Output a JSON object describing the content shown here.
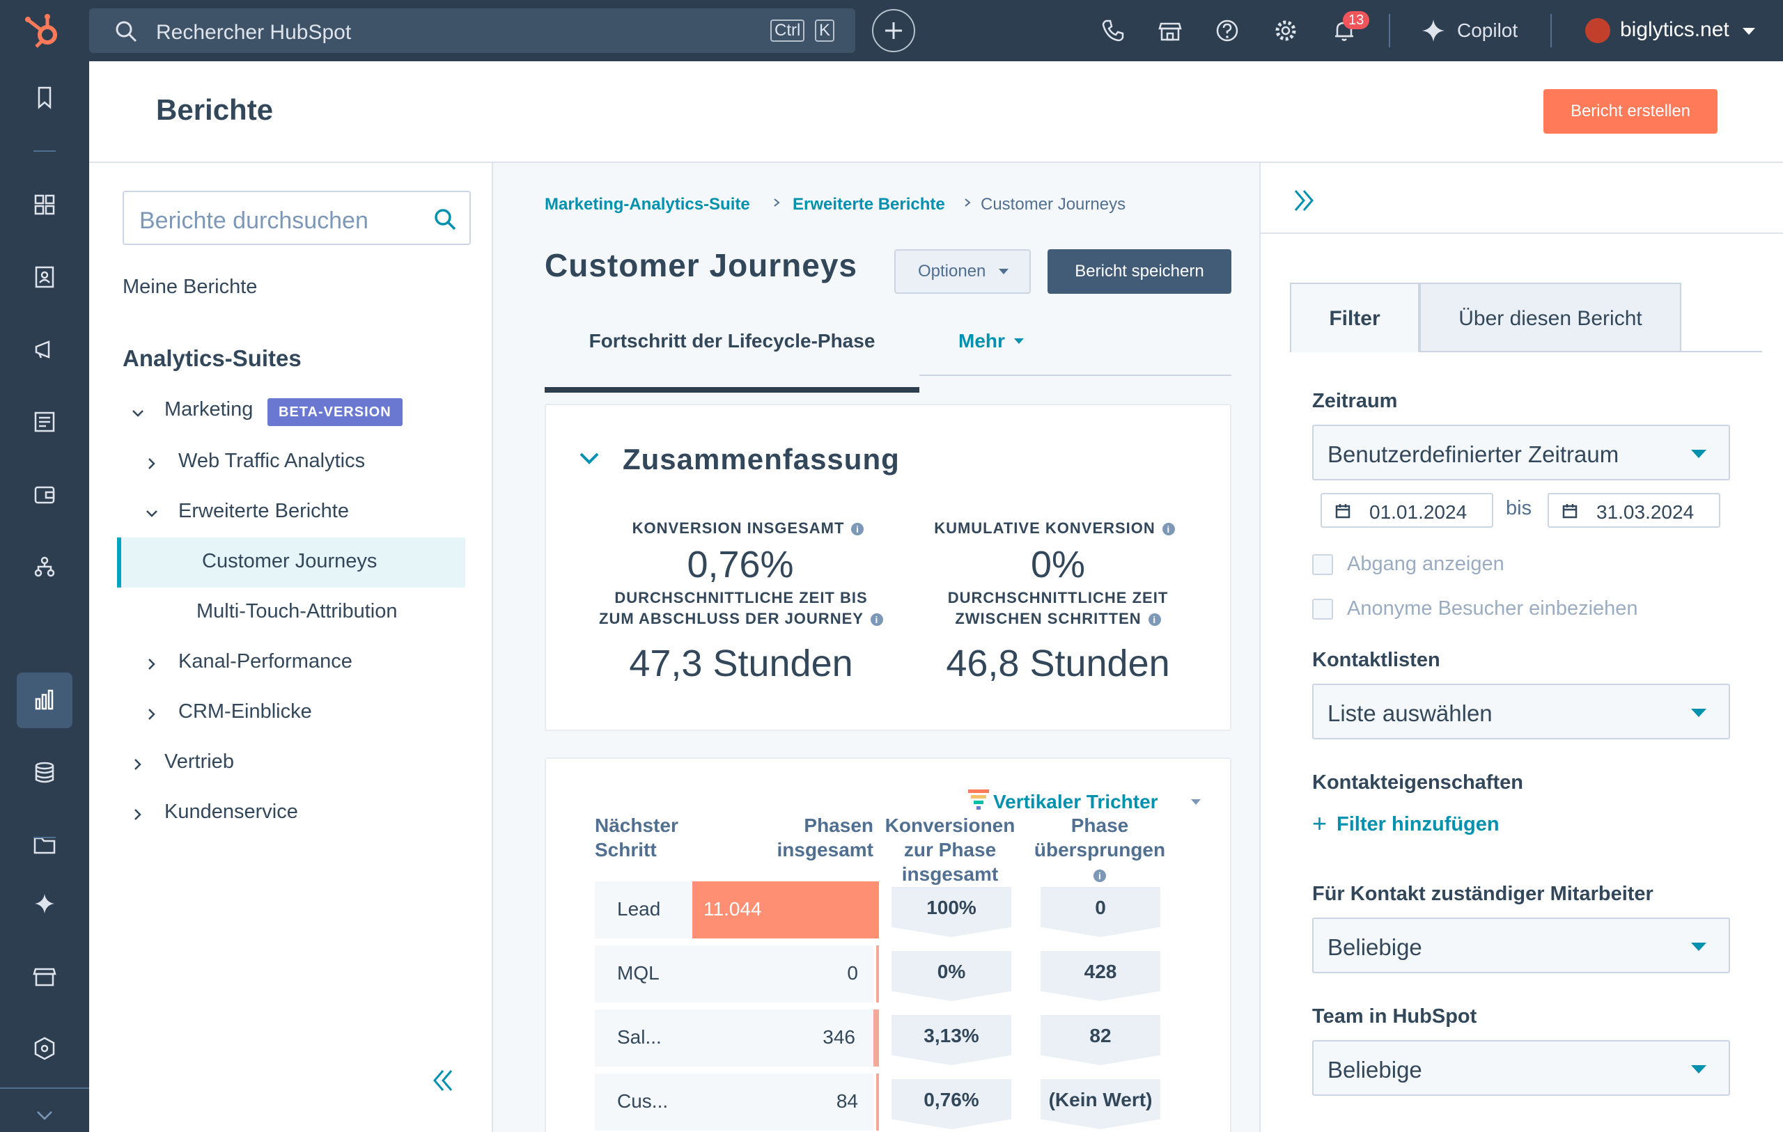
{
  "topbar": {
    "search_placeholder": "Rechercher HubSpot",
    "kbd_ctrl": "Ctrl",
    "kbd_k": "K",
    "notification_count": "13",
    "copilot_label": "Copilot",
    "account_name": "biglytics.net"
  },
  "header": {
    "title": "Berichte",
    "create_button": "Bericht erstellen"
  },
  "left_panel": {
    "search_placeholder": "Berichte durchsuchen",
    "my_reports": "Meine Berichte",
    "section_title": "Analytics-Suites",
    "tree": {
      "marketing": "Marketing",
      "beta_badge": "BETA-VERSION",
      "web_traffic": "Web Traffic Analytics",
      "advanced": "Erweiterte Berichte",
      "customer_journeys": "Customer Journeys",
      "multi_touch": "Multi-Touch-Attribution",
      "channel": "Kanal-Performance",
      "crm": "CRM-Einblicke",
      "sales": "Vertrieb",
      "service": "Kundenservice"
    }
  },
  "breadcrumb": {
    "level1": "Marketing-Analytics-Suite",
    "level2": "Erweiterte Berichte",
    "current": "Customer Journeys"
  },
  "report": {
    "title": "Customer Journeys",
    "options_button": "Optionen",
    "save_button": "Bericht speichern",
    "tab_active": "Fortschritt der Lifecycle-Phase",
    "tab_more": "Mehr"
  },
  "summary": {
    "title": "Zusammenfassung",
    "kpis": {
      "total_conversion_label": "KONVERSION INSGESAMT",
      "total_conversion_value": "0,76%",
      "cumulative_conversion_label": "KUMULATIVE KONVERSION",
      "cumulative_conversion_value": "0%",
      "avg_time_total_label_1": "DURCHSCHNITTLICHE ZEIT BIS",
      "avg_time_total_label_2": "ZUM ABSCHLUSS DER JOURNEY",
      "avg_time_total_value": "47,3 Stunden",
      "avg_time_steps_label_1": "DURCHSCHNITTLICHE ZEIT",
      "avg_time_steps_label_2": "ZWISCHEN SCHRITTEN",
      "avg_time_steps_value": "46,8 Stunden"
    }
  },
  "funnel": {
    "visualization": "Vertikaler Trichter",
    "columns": {
      "next_step_1": "Nächster",
      "next_step_2": "Schritt",
      "phases_1": "Phasen",
      "phases_2": "insgesamt",
      "conv_1": "Konversionen",
      "conv_2": "zur Phase",
      "conv_3": "insgesamt",
      "skipped_1": "Phase",
      "skipped_2": "übersprungen"
    },
    "rows": [
      {
        "stage": "Lead",
        "total": "11.044",
        "conversion": "100%",
        "skipped": "0",
        "fraction": 1.0
      },
      {
        "stage": "MQL",
        "total": "0",
        "conversion": "0%",
        "skipped": "428",
        "fraction": 0.0
      },
      {
        "stage": "Sal...",
        "total": "346",
        "conversion": "3,13%",
        "skipped": "82",
        "fraction": 0.0313
      },
      {
        "stage": "Cus...",
        "total": "84",
        "conversion": "0,76%",
        "skipped": "(Kein Wert)",
        "fraction": 0.0076
      }
    ]
  },
  "right_panel": {
    "tab_filter": "Filter",
    "tab_about": "Über diesen Bericht",
    "date_range_label": "Zeitraum",
    "date_range_value": "Benutzerdefinierter Zeitraum",
    "date_from": "01.01.2024",
    "date_to_word": "bis",
    "date_to": "31.03.2024",
    "show_dropoff": "Abgang anzeigen",
    "include_anonymous": "Anonyme Besucher einbeziehen",
    "contact_lists_label": "Kontaktlisten",
    "contact_lists_value": "Liste auswählen",
    "contact_props_label": "Kontakteigenschaften",
    "add_filter": "Filter hinzufügen",
    "owner_label": "Für Kontakt zuständiger Mitarbeiter",
    "owner_value": "Beliebige",
    "team_label": "Team in HubSpot",
    "team_value": "Beliebige"
  },
  "colors": {
    "topbar": "#2d3e50",
    "accent_orange": "#ff7a59",
    "link_teal": "#0091ae",
    "funnel_bar": "#ff8f73",
    "beta_badge": "#6a78d1"
  }
}
